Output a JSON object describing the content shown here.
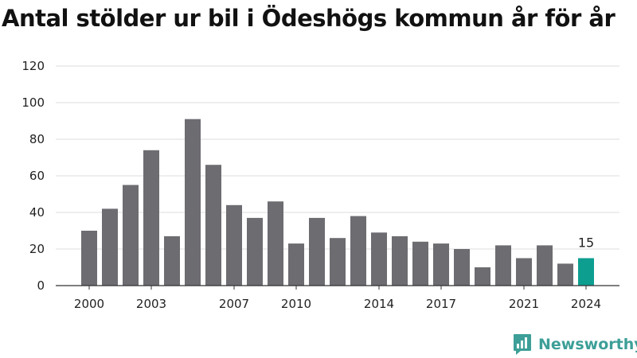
{
  "chart_data": {
    "type": "bar",
    "title": "Antal stölder ur bil i Ödeshögs kommun år för år",
    "xlabel": "",
    "ylabel": "",
    "categories": [
      2000,
      2001,
      2002,
      2003,
      2004,
      2005,
      2006,
      2007,
      2008,
      2009,
      2010,
      2011,
      2012,
      2013,
      2014,
      2015,
      2016,
      2017,
      2018,
      2019,
      2020,
      2021,
      2022,
      2023,
      2024
    ],
    "values": [
      30,
      42,
      55,
      74,
      27,
      91,
      66,
      44,
      37,
      46,
      23,
      37,
      26,
      38,
      29,
      27,
      24,
      23,
      20,
      10,
      22,
      15,
      22,
      12,
      15
    ],
    "x_tick_labels": [
      "2000",
      "2003",
      "2007",
      "2010",
      "2014",
      "2017",
      "2021",
      "2024"
    ],
    "y_ticks": [
      0,
      20,
      40,
      60,
      80,
      100,
      120
    ],
    "ylim": [
      0,
      120
    ],
    "grid": true,
    "data_labels": [
      {
        "category": 2024,
        "text": "15"
      }
    ],
    "colors": {
      "bar": "#6d6c71",
      "highlight": "#0d9e90",
      "grid": "#dedede",
      "axis": "#333333"
    },
    "highlight_category": 2024
  },
  "brand": {
    "name": "Newsworthy",
    "icon": "newsworthy-logo-icon",
    "color": "#3d9f98"
  }
}
